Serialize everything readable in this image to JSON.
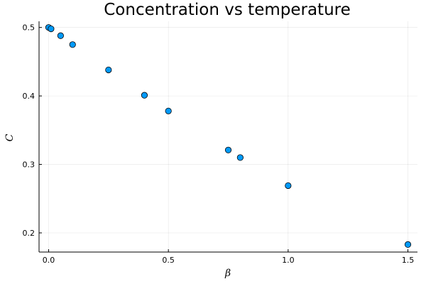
{
  "chart_data": {
    "type": "scatter",
    "title": "Concentration vs temperature",
    "xlabel": "β",
    "ylabel": "C",
    "xlim": [
      -0.04,
      1.54
    ],
    "ylim": [
      0.172,
      0.509
    ],
    "x_ticks": [
      0.0,
      0.5,
      1.0,
      1.5
    ],
    "x_tick_labels": [
      "0.0",
      "0.5",
      "1.0",
      "1.5"
    ],
    "y_ticks": [
      0.2,
      0.3,
      0.4,
      0.5
    ],
    "y_tick_labels": [
      "0.2",
      "0.3",
      "0.4",
      "0.5"
    ],
    "grid": true,
    "legend": "none",
    "series": [
      {
        "color": "#009AFA",
        "points": [
          {
            "x": 0.0,
            "y": 0.5
          },
          {
            "x": 0.01,
            "y": 0.498
          },
          {
            "x": 0.05,
            "y": 0.488
          },
          {
            "x": 0.1,
            "y": 0.475
          },
          {
            "x": 0.25,
            "y": 0.438
          },
          {
            "x": 0.4,
            "y": 0.401
          },
          {
            "x": 0.5,
            "y": 0.378
          },
          {
            "x": 0.75,
            "y": 0.321
          },
          {
            "x": 0.8,
            "y": 0.31
          },
          {
            "x": 1.0,
            "y": 0.269
          },
          {
            "x": 1.5,
            "y": 0.183
          }
        ]
      }
    ]
  }
}
